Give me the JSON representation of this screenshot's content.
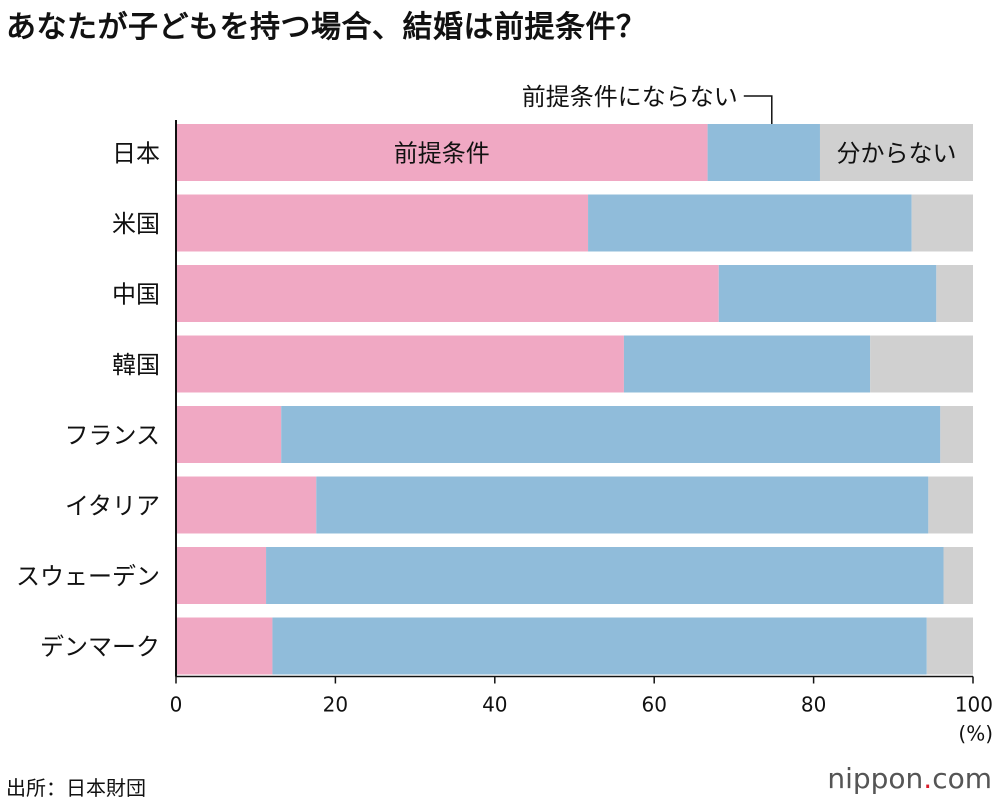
{
  "title": "あなたが子どもを持つ場合、結婚は前提条件？",
  "source": "出所：日本財団",
  "brand": {
    "name": "nippon",
    "dot": ".",
    "tld": "com"
  },
  "chart_data": {
    "type": "bar",
    "orientation": "horizontal",
    "stacked": true,
    "categories": [
      "日本",
      "米国",
      "中国",
      "韓国",
      "フランス",
      "イタリア",
      "スウェーデン",
      "デンマーク"
    ],
    "series": [
      {
        "name": "前提条件",
        "color": "#f0a8c3",
        "values": [
          66.7,
          51.7,
          68.1,
          56.2,
          13.2,
          17.6,
          11.3,
          12.1
        ]
      },
      {
        "name": "前提条件にならない",
        "color": "#90bcda",
        "values": [
          14.1,
          40.6,
          27.3,
          30.9,
          82.7,
          76.8,
          85.0,
          82.1
        ]
      },
      {
        "name": "分からない",
        "color": "#d0d0d0",
        "values": [
          19.2,
          7.7,
          4.6,
          12.9,
          4.1,
          5.6,
          3.7,
          5.8
        ]
      }
    ],
    "xlim": [
      0,
      100
    ],
    "xticks": [
      0,
      20,
      40,
      60,
      80,
      100
    ],
    "xunit": "(%)",
    "grid": false
  }
}
